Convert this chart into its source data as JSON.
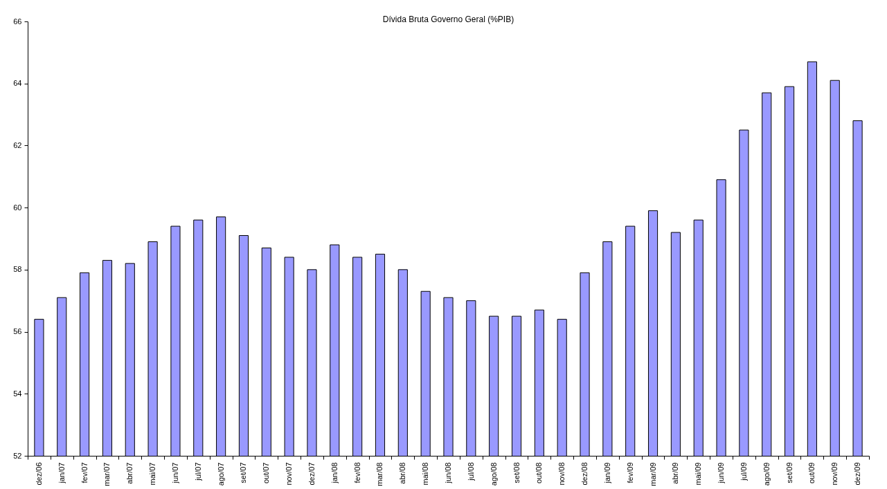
{
  "chart_data": {
    "type": "bar",
    "title": "Dívida Bruta Governo Geral (%PIB)",
    "categories": [
      "dez/06",
      "jan/07",
      "fev/07",
      "mar/07",
      "abr/07",
      "mai/07",
      "jun/07",
      "jul/07",
      "ago/07",
      "set/07",
      "out/07",
      "nov/07",
      "dez/07",
      "jan/08",
      "fev/08",
      "mar/08",
      "abr/08",
      "mai/08",
      "jun/08",
      "jul/08",
      "ago/08",
      "set/08",
      "out/08",
      "nov/08",
      "dez/08",
      "jan/09",
      "fev/09",
      "mar/09",
      "abr/09",
      "mai/09",
      "jun/09",
      "jul/09",
      "ago/09",
      "set/09",
      "out/09",
      "nov/09",
      "dez/09"
    ],
    "values": [
      56.4,
      57.1,
      57.9,
      58.3,
      58.2,
      58.9,
      59.4,
      59.6,
      59.7,
      59.1,
      58.7,
      58.4,
      58.0,
      58.8,
      58.4,
      58.5,
      58.0,
      57.3,
      57.1,
      57.0,
      56.5,
      56.5,
      56.7,
      56.4,
      57.9,
      58.9,
      59.4,
      59.9,
      59.2,
      59.6,
      60.9,
      62.5,
      63.7,
      63.9,
      64.7,
      64.1,
      62.8
    ],
    "color": "#9999ff",
    "ylim": [
      52,
      66
    ],
    "yticks": [
      52,
      54,
      56,
      58,
      60,
      62,
      64,
      66
    ],
    "grid": false
  }
}
